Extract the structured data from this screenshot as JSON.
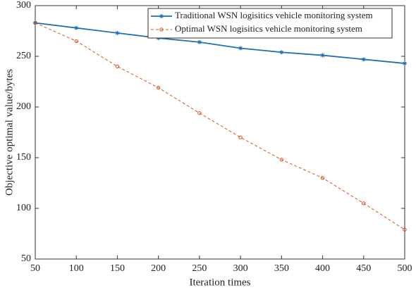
{
  "chart_data": {
    "type": "line",
    "x_label": "Iteration times",
    "y_label": "Objective optimal value/bytes",
    "x": [
      50,
      100,
      150,
      200,
      250,
      300,
      350,
      400,
      450,
      500
    ],
    "series": [
      {
        "name": "Traditional WSN logisitics vehicle monitoring system",
        "color": "#1f6fb8",
        "line_style": "solid",
        "marker": "star",
        "values": [
          283,
          278,
          273,
          268,
          264,
          258,
          254,
          251,
          247,
          243
        ]
      },
      {
        "name": "Optimal WSN logisitics vehicle monitoring system",
        "color": "#d9531e",
        "line_style": "dashed",
        "marker": "circle",
        "values": [
          283,
          265,
          240,
          219,
          194,
          170,
          148,
          130,
          105,
          79
        ]
      }
    ],
    "xlim": [
      50,
      500
    ],
    "xticks": [
      50,
      100,
      150,
      200,
      250,
      300,
      350,
      400,
      450,
      500
    ],
    "ylim": [
      50,
      300
    ],
    "yticks": [
      50,
      100,
      150,
      200,
      250,
      300
    ],
    "grid": false,
    "legend": "upper right"
  }
}
